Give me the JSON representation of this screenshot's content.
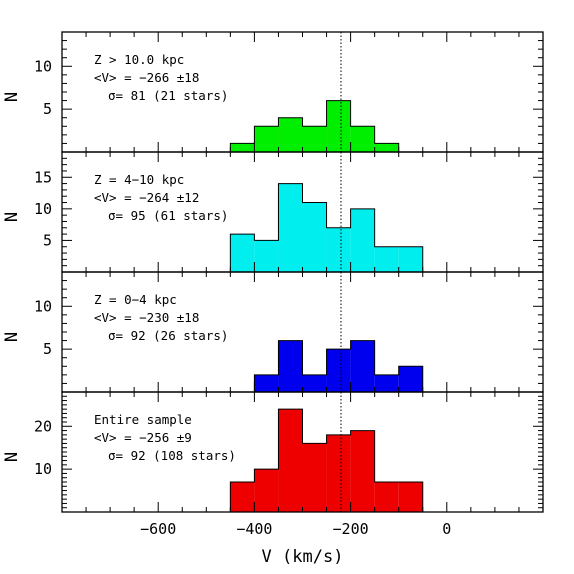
{
  "chart_data": {
    "type": "bar",
    "xlabel": "V (km/s)",
    "xlim": [
      -800,
      200
    ],
    "x_ticks": [
      -600,
      -400,
      -200,
      0
    ],
    "x_tick_labels": [
      "−600",
      "−400",
      "−200",
      "0"
    ],
    "bin_width": 50,
    "reference_line_x": -220,
    "panels": [
      {
        "ylabel": "N",
        "ylim": [
          0,
          14
        ],
        "y_ticks": [
          5,
          10
        ],
        "annotation": [
          "Z > 10.0 kpc",
          "<V> = −266 ±18",
          "σ= 81 (21 stars)"
        ],
        "color": "#00ee00",
        "bin_starts": [
          -450,
          -400,
          -350,
          -300,
          -250,
          -200,
          -150
        ],
        "counts": [
          1,
          3,
          4,
          3,
          6,
          3,
          1
        ]
      },
      {
        "ylabel": "N",
        "ylim": [
          0,
          19
        ],
        "y_ticks": [
          5,
          10,
          15
        ],
        "annotation": [
          "Z = 4−10 kpc",
          "<V> = −264 ±12",
          "σ= 95 (61 stars)"
        ],
        "color": "#00eeee",
        "bin_starts": [
          -450,
          -400,
          -350,
          -300,
          -250,
          -200,
          -150,
          -100
        ],
        "counts": [
          6,
          5,
          14,
          11,
          7,
          10,
          4,
          4
        ]
      },
      {
        "ylabel": "N",
        "ylim": [
          0,
          14
        ],
        "y_ticks": [
          5,
          10
        ],
        "annotation": [
          "Z = 0−4 kpc",
          "<V> = −230 ±18",
          "σ= 92 (26 stars)"
        ],
        "color": "#0000ee",
        "bin_starts": [
          -400,
          -350,
          -300,
          -250,
          -200,
          -150,
          -100
        ],
        "counts": [
          2,
          6,
          2,
          5,
          6,
          2,
          3
        ]
      },
      {
        "ylabel": "N",
        "ylim": [
          0,
          28
        ],
        "y_ticks": [
          10,
          20
        ],
        "annotation": [
          "Entire sample",
          "<V> = −256 ±9",
          "σ= 92 (108 stars)"
        ],
        "color": "#ee0000",
        "bin_starts": [
          -450,
          -400,
          -350,
          -300,
          -250,
          -200,
          -150,
          -100
        ],
        "counts": [
          7,
          10,
          24,
          16,
          18,
          19,
          7,
          7
        ]
      }
    ]
  }
}
